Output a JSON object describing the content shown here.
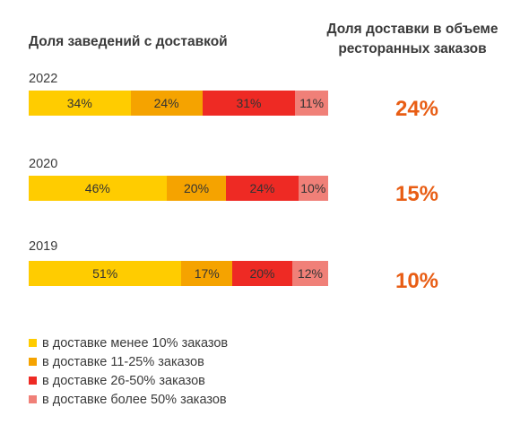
{
  "left_title": "Доля заведений с доставкой",
  "right_title": [
    "Доля доставки в объеме",
    "ресторанных заказов"
  ],
  "colors": {
    "lt10": "#ffcc00",
    "11_25": "#f5a300",
    "26_50": "#ee2a24",
    "gt50": "#f08078",
    "share": "#e85d14"
  },
  "chart_data": {
    "type": "bar",
    "orientation": "horizontal",
    "stacked": true,
    "normalized": true,
    "categories": [
      "2022",
      "2020",
      "2019"
    ],
    "series": [
      {
        "name": "в доставке менее 10% заказов",
        "values": [
          34,
          46,
          51
        ],
        "labels": [
          "34%",
          "46%",
          "51%"
        ],
        "color": "#ffcc00"
      },
      {
        "name": "в доставке 11-25% заказов",
        "values": [
          24,
          20,
          17
        ],
        "labels": [
          "24%",
          "20%",
          "17%"
        ],
        "color": "#f5a300"
      },
      {
        "name": "в доставке 26-50% заказов",
        "values": [
          31,
          24,
          20
        ],
        "labels": [
          "31%",
          "24%",
          "20%"
        ],
        "color": "#ee2a24"
      },
      {
        "name": "в доставке более 50% заказов",
        "values": [
          11,
          10,
          12
        ],
        "labels": [
          "11%",
          "10%",
          "12%"
        ],
        "color": "#f08078"
      }
    ],
    "delivery_share": {
      "values": [
        24,
        15,
        10
      ],
      "labels": [
        "24%",
        "15%",
        "10%"
      ]
    },
    "legend_position": "bottom-left",
    "grid": false
  }
}
